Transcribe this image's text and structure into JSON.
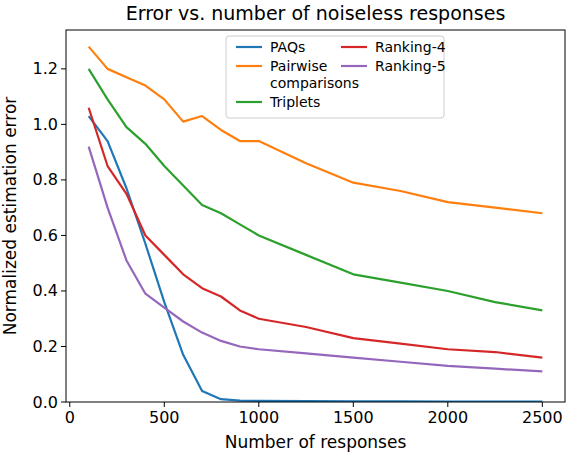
{
  "chart_data": {
    "type": "line",
    "title": "Error vs. number of noiseless responses",
    "x_label": "Number of responses",
    "y_label": "Normalized estimation error",
    "x": [
      100,
      200,
      300,
      400,
      500,
      600,
      700,
      800,
      900,
      1000,
      1250,
      1500,
      1750,
      2000,
      2250,
      2500
    ],
    "series": [
      {
        "name": "PAQs",
        "color": "#1f77b4",
        "values": [
          1.03,
          0.94,
          0.77,
          0.57,
          0.36,
          0.17,
          0.04,
          0.01,
          0.005,
          0.004,
          0.003,
          0.002,
          0.002,
          0.001,
          0.001,
          0.001
        ]
      },
      {
        "name": "Pairwise comparisons",
        "color": "#ff7f0e",
        "values": [
          1.28,
          1.2,
          1.17,
          1.14,
          1.09,
          1.01,
          1.03,
          0.98,
          0.94,
          0.94,
          0.86,
          0.79,
          0.76,
          0.72,
          0.7,
          0.68
        ]
      },
      {
        "name": "Triplets",
        "color": "#2ca02c",
        "values": [
          1.2,
          1.09,
          0.99,
          0.93,
          0.85,
          0.78,
          0.71,
          0.68,
          0.64,
          0.6,
          0.53,
          0.46,
          0.43,
          0.4,
          0.36,
          0.33
        ]
      },
      {
        "name": "Ranking-4",
        "color": "#d62728",
        "values": [
          1.06,
          0.85,
          0.75,
          0.6,
          0.53,
          0.46,
          0.41,
          0.38,
          0.33,
          0.3,
          0.27,
          0.23,
          0.21,
          0.19,
          0.18,
          0.16
        ]
      },
      {
        "name": "Ranking-5",
        "color": "#9467bd",
        "values": [
          0.92,
          0.7,
          0.51,
          0.39,
          0.34,
          0.29,
          0.25,
          0.22,
          0.2,
          0.19,
          0.175,
          0.16,
          0.145,
          0.13,
          0.12,
          0.11
        ]
      }
    ],
    "xlim": [
      -20,
      2620
    ],
    "xticks": [
      0,
      500,
      1000,
      1500,
      2000,
      2500
    ],
    "ylim": [
      0,
      1.34
    ],
    "yticks": [
      {
        "value": 0,
        "label": "0.0"
      },
      {
        "value": 0.2,
        "label": "0.2"
      },
      {
        "value": 0.4,
        "label": "0.4"
      },
      {
        "value": 0.6,
        "label": "0.6"
      },
      {
        "value": 0.8,
        "label": "0.8"
      },
      {
        "value": 1,
        "label": "1.0"
      },
      {
        "value": 1.2,
        "label": "1.2"
      }
    ],
    "grid": false,
    "legend": "upper right"
  }
}
